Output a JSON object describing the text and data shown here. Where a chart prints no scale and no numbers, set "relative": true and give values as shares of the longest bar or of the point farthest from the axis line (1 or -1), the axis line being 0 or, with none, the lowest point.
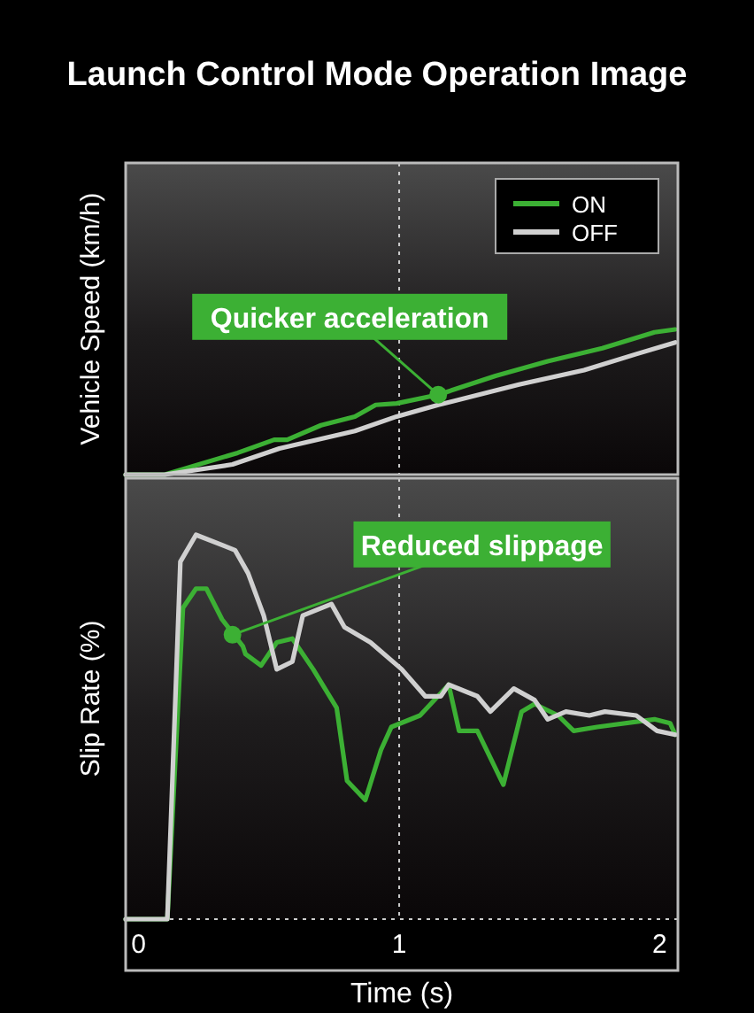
{
  "chart_data": [
    {
      "type": "line",
      "title": "Launch Control Mode Operation Image",
      "ylabel": "Vehicle Speed (km/h)",
      "relative": true,
      "xlim": [
        -0.05,
        2.07
      ],
      "tick_labels": false,
      "legend": "top right",
      "grid": false,
      "marker": "none",
      "line_style": "solid",
      "series": [
        {
          "name": "ON",
          "color": "#3cb034",
          "x": [
            -0.05,
            0.1,
            0.38,
            0.52,
            0.57,
            0.7,
            0.83,
            0.91,
            0.99,
            1.15,
            1.37,
            1.57,
            1.78,
            1.98,
            2.06
          ],
          "values": [
            0,
            0,
            0.15,
            0.24,
            0.24,
            0.34,
            0.4,
            0.48,
            0.49,
            0.55,
            0.68,
            0.78,
            0.87,
            0.98,
            1
          ]
        },
        {
          "name": "OFF",
          "color": "#d0d0d0",
          "x": [
            -0.05,
            0.1,
            0.36,
            0.54,
            0.83,
            0.99,
            1.15,
            1.46,
            1.71,
            1.91,
            2.06
          ],
          "values": [
            0,
            0,
            0.07,
            0.18,
            0.3,
            0.4,
            0.48,
            0.62,
            0.72,
            0.83,
            0.91
          ]
        }
      ],
      "ref_lines": [
        {
          "axis": "x",
          "value": 1,
          "color": "#cccccc",
          "line_style": "dotted"
        }
      ],
      "annotations": [
        {
          "text": "Quicker acceleration",
          "x": 1.15,
          "y": 0.55
        }
      ]
    },
    {
      "type": "line",
      "xlabel": "Time (s)",
      "ylabel": "Slip Rate (%)",
      "relative": true,
      "xlim": [
        -0.05,
        2.07
      ],
      "xticks": [
        0,
        1,
        2
      ],
      "tick_labels": "x",
      "grid": false,
      "marker": "none",
      "line_style": "solid",
      "series": [
        {
          "color": "#3cb034",
          "x": [
            -0.05,
            0.11,
            0.17,
            0.22,
            0.26,
            0.32,
            0.4,
            0.41,
            0.47,
            0.53,
            0.59,
            0.67,
            0.76,
            0.8,
            0.87,
            0.93,
            0.97,
            1.08,
            1.19,
            1.23,
            1.3,
            1.4,
            1.47,
            1.52,
            1.61,
            1.67,
            1.76,
            1.98,
            2.04,
            2.06
          ],
          "values": [
            0,
            0,
            0.81,
            0.86,
            0.86,
            0.78,
            0.71,
            0.69,
            0.66,
            0.72,
            0.73,
            0.65,
            0.55,
            0.36,
            0.31,
            0.44,
            0.5,
            0.53,
            0.61,
            0.49,
            0.49,
            0.35,
            0.54,
            0.56,
            0.53,
            0.49,
            0.5,
            0.52,
            0.51,
            0.48
          ]
        },
        {
          "color": "#d0d0d0",
          "x": [
            -0.05,
            0.11,
            0.16,
            0.22,
            0.37,
            0.42,
            0.48,
            0.53,
            0.59,
            0.63,
            0.74,
            0.79,
            0.89,
            1.01,
            1.1,
            1.16,
            1.19,
            1.3,
            1.35,
            1.44,
            1.52,
            1.57,
            1.64,
            1.73,
            1.79,
            1.91,
            1.99,
            2.06
          ],
          "values": [
            0,
            0,
            0.93,
            1,
            0.96,
            0.9,
            0.79,
            0.65,
            0.67,
            0.79,
            0.82,
            0.76,
            0.72,
            0.65,
            0.58,
            0.58,
            0.61,
            0.58,
            0.54,
            0.6,
            0.57,
            0.52,
            0.54,
            0.53,
            0.54,
            0.53,
            0.49,
            0.48
          ]
        }
      ],
      "ref_lines": [
        {
          "axis": "x",
          "value": 1,
          "color": "#cccccc",
          "line_style": "dotted"
        }
      ],
      "annotations": [
        {
          "text": "Reduced slippage",
          "x": 0.36,
          "y": 0.74
        }
      ]
    }
  ]
}
